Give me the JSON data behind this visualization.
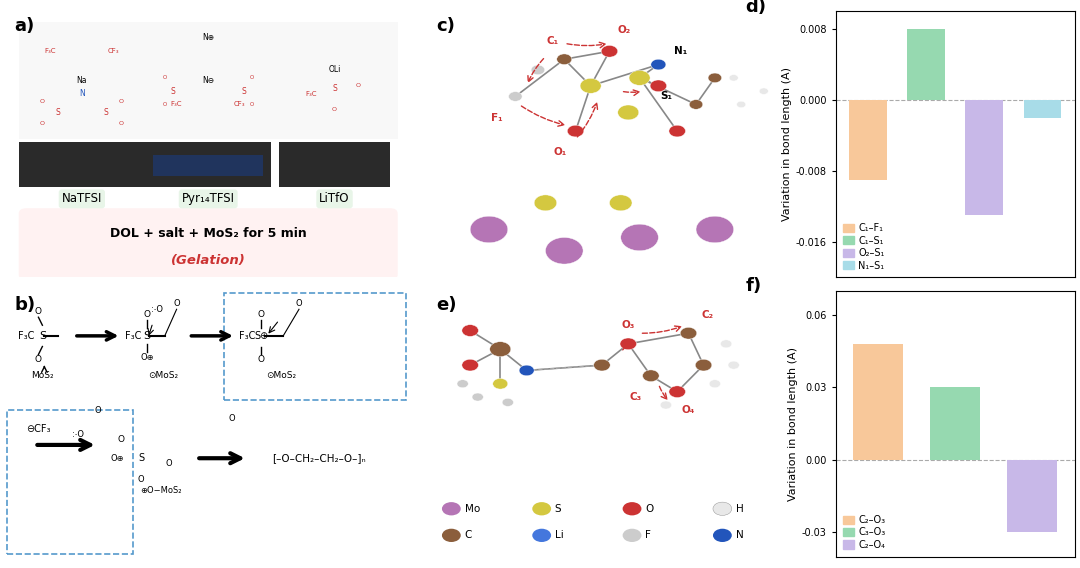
{
  "panel_d": {
    "label": "d)",
    "categories": [
      "C₁–F₁",
      "C₁–S₁",
      "O₂–S₁",
      "N₁–S₁"
    ],
    "values": [
      -0.009,
      0.008,
      -0.013,
      -0.002
    ],
    "colors": [
      "#F8C89A",
      "#96D9B0",
      "#C8B8E8",
      "#A8DCE8"
    ],
    "ylabel": "Variation in bond length (A)",
    "ylim": [
      -0.02,
      0.01
    ],
    "yticks": [
      -0.016,
      -0.008,
      0.0,
      0.008
    ],
    "yticklabels": [
      "-0.016",
      "-0.008",
      "0.000",
      "0.008"
    ]
  },
  "panel_f": {
    "label": "f)",
    "categories": [
      "C₂–O₃",
      "C₃–O₃",
      "C₂–O₄"
    ],
    "values": [
      0.048,
      0.03,
      -0.03
    ],
    "colors": [
      "#F8C89A",
      "#96D9B0",
      "#C8B8E8"
    ],
    "ylabel": "Variation in bond length (A)",
    "ylim": [
      -0.04,
      0.07
    ],
    "yticks": [
      -0.03,
      0.0,
      0.03,
      0.06
    ],
    "yticklabels": [
      "-0.03",
      "0.00",
      "0.03",
      "0.06"
    ]
  },
  "bg": "#FFFFFF",
  "label_fontsize": 13,
  "tick_fontsize": 7,
  "ylabel_fontsize": 8,
  "legend_fontsize": 7,
  "dashed_color": "#5599CC",
  "pink_bg": "#FFF2F2",
  "green_bg": "#E8F5E8",
  "atom_Mo": "#B575B5",
  "atom_S": "#D4C840",
  "atom_O": "#CC3333",
  "atom_H": "#E8E8E8",
  "atom_C": "#8B5E3C",
  "atom_Li": "#4477DD",
  "atom_F": "#CCCCCC",
  "atom_N": "#2255BB",
  "arrow_color": "#CC3333",
  "text_red": "#CC3333"
}
